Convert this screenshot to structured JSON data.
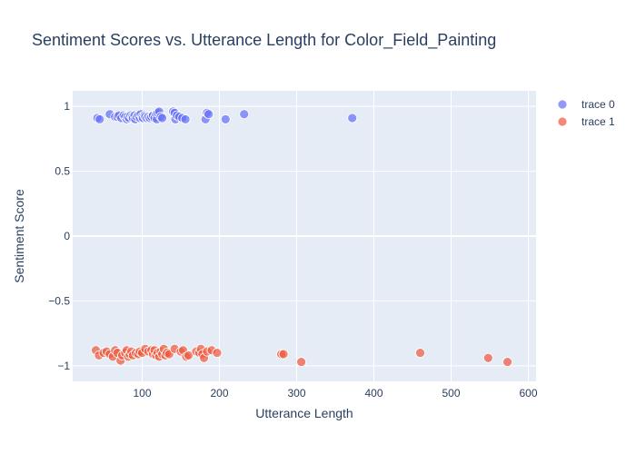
{
  "chart_data": {
    "type": "scatter",
    "title": "Sentiment Scores vs. Utterance Length for Color_Field_Painting",
    "xlabel": "Utterance Length",
    "ylabel": "Sentiment Score",
    "xlim": [
      10,
      610
    ],
    "ylim": [
      -1.12,
      1.12
    ],
    "x_ticks": [
      100,
      200,
      300,
      400,
      500,
      600
    ],
    "y_ticks": [
      1,
      0.5,
      0,
      -0.5,
      -1
    ],
    "y_tick_labels": [
      "1",
      "0.5",
      "0",
      "−0.5",
      "−1"
    ],
    "grid": true,
    "legend_position": "top-right",
    "colors": {
      "trace0": "#636efa",
      "trace1": "#ef553b",
      "plot_bg": "#e5ecf6",
      "grid": "#ffffff",
      "text": "#2a3f5f"
    },
    "series": [
      {
        "name": "trace 0",
        "x": [
          42,
          45,
          58,
          65,
          68,
          70,
          73,
          76,
          78,
          80,
          81,
          83,
          85,
          87,
          88,
          90,
          91,
          93,
          95,
          97,
          98,
          100,
          101,
          103,
          104,
          106,
          108,
          110,
          112,
          114,
          116,
          118,
          119,
          120,
          122,
          124,
          126,
          140,
          142,
          143,
          145,
          148,
          152,
          156,
          182,
          184,
          186,
          208,
          232,
          372
        ],
        "y": [
          0.91,
          0.9,
          0.94,
          0.92,
          0.92,
          0.93,
          0.91,
          0.93,
          0.92,
          0.9,
          0.92,
          0.91,
          0.93,
          0.92,
          0.91,
          0.93,
          0.9,
          0.92,
          0.93,
          0.91,
          0.94,
          0.92,
          0.91,
          0.93,
          0.92,
          0.91,
          0.92,
          0.91,
          0.92,
          0.93,
          0.91,
          0.94,
          0.9,
          0.95,
          0.96,
          0.92,
          0.91,
          0.96,
          0.95,
          0.9,
          0.93,
          0.92,
          0.91,
          0.9,
          0.9,
          0.95,
          0.94,
          0.9,
          0.94,
          0.91
        ]
      },
      {
        "name": "trace 1",
        "x": [
          40,
          44,
          50,
          54,
          58,
          62,
          65,
          68,
          72,
          74,
          78,
          80,
          82,
          84,
          86,
          88,
          92,
          95,
          97,
          100,
          104,
          108,
          112,
          114,
          116,
          118,
          120,
          122,
          124,
          126,
          128,
          130,
          132,
          135,
          142,
          150,
          153,
          157,
          160,
          170,
          174,
          176,
          178,
          180,
          184,
          190,
          197,
          280,
          283,
          306,
          460,
          548,
          573
        ],
        "y": [
          -0.88,
          -0.92,
          -0.9,
          -0.89,
          -0.91,
          -0.93,
          -0.88,
          -0.9,
          -0.96,
          -0.92,
          -0.9,
          -0.88,
          -0.93,
          -0.91,
          -0.89,
          -0.92,
          -0.9,
          -0.91,
          -0.89,
          -0.9,
          -0.87,
          -0.89,
          -0.88,
          -0.91,
          -0.88,
          -0.92,
          -0.9,
          -0.93,
          -0.89,
          -0.91,
          -0.87,
          -0.92,
          -0.9,
          -0.91,
          -0.87,
          -0.89,
          -0.88,
          -0.93,
          -0.92,
          -0.89,
          -0.9,
          -0.87,
          -0.91,
          -0.94,
          -0.89,
          -0.88,
          -0.9,
          -0.91,
          -0.91,
          -0.97,
          -0.9,
          -0.94,
          -0.97
        ]
      }
    ]
  }
}
